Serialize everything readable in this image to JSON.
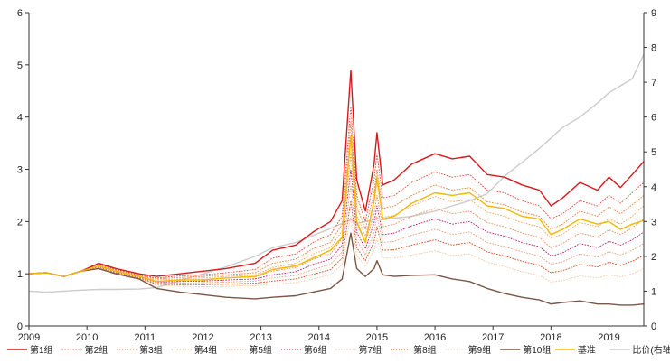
{
  "chart_data": {
    "type": "line",
    "title": "",
    "xlabel": "",
    "ylabel_left": "",
    "ylabel_right": "",
    "xlim": [
      2009,
      2019.6
    ],
    "ylim_left": [
      0,
      6
    ],
    "ylim_right": [
      0,
      9
    ],
    "x_ticks": [
      "2009",
      "2010",
      "2011",
      "2012",
      "2013",
      "2014",
      "2015",
      "2016",
      "2017",
      "2018",
      "2019"
    ],
    "y_ticks_left": [
      "0",
      "1",
      "2",
      "3",
      "4",
      "5",
      "6"
    ],
    "y_ticks_right": [
      "0",
      "1",
      "2",
      "3",
      "4",
      "5",
      "6",
      "7",
      "8",
      "9"
    ],
    "grid": false,
    "legend_position": "bottom",
    "series": [
      {
        "name": "第1组",
        "axis": "left",
        "color": "#d7191c",
        "dash": "solid",
        "width": 1.4,
        "x": [
          2009.0,
          2009.3,
          2009.6,
          2009.9,
          2010.2,
          2010.5,
          2010.9,
          2011.2,
          2011.6,
          2012.0,
          2012.4,
          2012.9,
          2013.2,
          2013.6,
          2013.9,
          2014.2,
          2014.4,
          2014.55,
          2014.65,
          2014.8,
          2014.95,
          2015.0,
          2015.1,
          2015.3,
          2015.6,
          2016.0,
          2016.3,
          2016.6,
          2016.9,
          2017.2,
          2017.5,
          2017.8,
          2018.0,
          2018.2,
          2018.5,
          2018.8,
          2019.0,
          2019.2,
          2019.4,
          2019.6
        ],
        "y": [
          1.0,
          1.02,
          0.95,
          1.05,
          1.2,
          1.1,
          1.0,
          0.95,
          1.0,
          1.05,
          1.1,
          1.2,
          1.45,
          1.55,
          1.8,
          2.0,
          2.4,
          4.9,
          2.8,
          2.2,
          3.1,
          3.7,
          2.7,
          2.8,
          3.1,
          3.3,
          3.2,
          3.25,
          2.9,
          2.85,
          2.7,
          2.6,
          2.3,
          2.45,
          2.75,
          2.6,
          2.85,
          2.65,
          2.9,
          3.15
        ]
      },
      {
        "name": "第2组",
        "axis": "left",
        "color": "#e34a33",
        "dash": "1 2",
        "width": 0.9,
        "x": [
          2009.0,
          2009.3,
          2009.6,
          2009.9,
          2010.2,
          2010.5,
          2010.9,
          2011.2,
          2011.6,
          2012.0,
          2012.4,
          2012.9,
          2013.2,
          2013.6,
          2013.9,
          2014.2,
          2014.4,
          2014.55,
          2014.65,
          2014.8,
          2014.95,
          2015.0,
          2015.1,
          2015.3,
          2015.6,
          2016.0,
          2016.3,
          2016.6,
          2016.9,
          2017.2,
          2017.5,
          2017.8,
          2018.0,
          2018.2,
          2018.5,
          2018.8,
          2019.0,
          2019.2,
          2019.4,
          2019.6
        ],
        "y": [
          1.0,
          1.02,
          0.95,
          1.05,
          1.18,
          1.08,
          0.98,
          0.92,
          0.96,
          0.98,
          1.02,
          1.08,
          1.3,
          1.38,
          1.6,
          1.75,
          2.1,
          4.2,
          2.5,
          2.0,
          2.8,
          3.3,
          2.45,
          2.5,
          2.75,
          2.95,
          2.85,
          2.9,
          2.6,
          2.55,
          2.4,
          2.3,
          2.05,
          2.15,
          2.4,
          2.3,
          2.5,
          2.35,
          2.55,
          2.75
        ]
      },
      {
        "name": "第3组",
        "axis": "left",
        "color": "#ee7d3a",
        "dash": "1 2",
        "width": 0.9,
        "x": [
          2009.0,
          2009.3,
          2009.6,
          2009.9,
          2010.2,
          2010.5,
          2010.9,
          2011.2,
          2011.6,
          2012.0,
          2012.4,
          2012.9,
          2013.2,
          2013.6,
          2013.9,
          2014.2,
          2014.4,
          2014.55,
          2014.65,
          2014.8,
          2014.95,
          2015.0,
          2015.1,
          2015.3,
          2015.6,
          2016.0,
          2016.3,
          2016.6,
          2016.9,
          2017.2,
          2017.5,
          2017.8,
          2018.0,
          2018.2,
          2018.5,
          2018.8,
          2019.0,
          2019.2,
          2019.4,
          2019.6
        ],
        "y": [
          1.0,
          1.02,
          0.95,
          1.05,
          1.17,
          1.07,
          0.97,
          0.9,
          0.93,
          0.95,
          0.98,
          1.02,
          1.2,
          1.28,
          1.48,
          1.6,
          1.95,
          3.9,
          2.3,
          1.85,
          2.55,
          3.0,
          2.25,
          2.3,
          2.5,
          2.7,
          2.6,
          2.65,
          2.38,
          2.32,
          2.18,
          2.1,
          1.85,
          1.95,
          2.2,
          2.1,
          2.28,
          2.15,
          2.32,
          2.5
        ]
      },
      {
        "name": "第4组",
        "axis": "left",
        "color": "#f4a460",
        "dash": "1 2",
        "width": 0.9,
        "x": [
          2009.0,
          2009.3,
          2009.6,
          2009.9,
          2010.2,
          2010.5,
          2010.9,
          2011.2,
          2011.6,
          2012.0,
          2012.4,
          2012.9,
          2013.2,
          2013.6,
          2013.9,
          2014.2,
          2014.4,
          2014.55,
          2014.65,
          2014.8,
          2014.95,
          2015.0,
          2015.1,
          2015.3,
          2015.6,
          2016.0,
          2016.3,
          2016.6,
          2016.9,
          2017.2,
          2017.5,
          2017.8,
          2018.0,
          2018.2,
          2018.5,
          2018.8,
          2019.0,
          2019.2,
          2019.4,
          2019.6
        ],
        "y": [
          1.0,
          1.02,
          0.95,
          1.05,
          1.16,
          1.06,
          0.96,
          0.88,
          0.9,
          0.92,
          0.95,
          0.98,
          1.12,
          1.2,
          1.38,
          1.5,
          1.82,
          3.6,
          2.12,
          1.72,
          2.35,
          2.75,
          2.08,
          2.12,
          2.3,
          2.48,
          2.38,
          2.42,
          2.18,
          2.1,
          1.98,
          1.9,
          1.68,
          1.76,
          1.98,
          1.9,
          2.05,
          1.95,
          2.1,
          2.3
        ]
      },
      {
        "name": "第5组",
        "axis": "left",
        "color": "#f08c5a",
        "dash": "1 2",
        "width": 0.9,
        "x": [
          2009.0,
          2009.3,
          2009.6,
          2009.9,
          2010.2,
          2010.5,
          2010.9,
          2011.2,
          2011.6,
          2012.0,
          2012.4,
          2012.9,
          2013.2,
          2013.6,
          2013.9,
          2014.2,
          2014.4,
          2014.55,
          2014.65,
          2014.8,
          2014.95,
          2015.0,
          2015.1,
          2015.3,
          2015.6,
          2016.0,
          2016.3,
          2016.6,
          2016.9,
          2017.2,
          2017.5,
          2017.8,
          2018.0,
          2018.2,
          2018.5,
          2018.8,
          2019.0,
          2019.2,
          2019.4,
          2019.6
        ],
        "y": [
          1.0,
          1.02,
          0.95,
          1.05,
          1.15,
          1.05,
          0.95,
          0.86,
          0.88,
          0.89,
          0.92,
          0.94,
          1.05,
          1.12,
          1.28,
          1.38,
          1.68,
          3.3,
          1.95,
          1.6,
          2.15,
          2.5,
          1.9,
          1.95,
          2.1,
          2.25,
          2.15,
          2.2,
          1.98,
          1.9,
          1.78,
          1.7,
          1.5,
          1.58,
          1.78,
          1.7,
          1.84,
          1.75,
          1.88,
          2.05
        ]
      },
      {
        "name": "第6组",
        "axis": "left",
        "color": "#c2185b",
        "dash": "1 2",
        "width": 0.9,
        "x": [
          2009.0,
          2009.3,
          2009.6,
          2009.9,
          2010.2,
          2010.5,
          2010.9,
          2011.2,
          2011.6,
          2012.0,
          2012.4,
          2012.9,
          2013.2,
          2013.6,
          2013.9,
          2014.2,
          2014.4,
          2014.55,
          2014.65,
          2014.8,
          2014.95,
          2015.0,
          2015.1,
          2015.3,
          2015.6,
          2016.0,
          2016.3,
          2016.6,
          2016.9,
          2017.2,
          2017.5,
          2017.8,
          2018.0,
          2018.2,
          2018.5,
          2018.8,
          2019.0,
          2019.2,
          2019.4,
          2019.6
        ],
        "y": [
          1.0,
          1.02,
          0.95,
          1.05,
          1.14,
          1.04,
          0.94,
          0.84,
          0.85,
          0.86,
          0.88,
          0.9,
          0.98,
          1.04,
          1.18,
          1.28,
          1.55,
          3.0,
          1.8,
          1.48,
          1.98,
          2.3,
          1.75,
          1.78,
          1.92,
          2.05,
          1.95,
          2.0,
          1.8,
          1.72,
          1.6,
          1.52,
          1.34,
          1.4,
          1.58,
          1.5,
          1.62,
          1.55,
          1.65,
          1.8
        ]
      },
      {
        "name": "第7组",
        "axis": "left",
        "color": "#e8a07a",
        "dash": "1 2",
        "width": 0.9,
        "x": [
          2009.0,
          2009.3,
          2009.6,
          2009.9,
          2010.2,
          2010.5,
          2010.9,
          2011.2,
          2011.6,
          2012.0,
          2012.4,
          2012.9,
          2013.2,
          2013.6,
          2013.9,
          2014.2,
          2014.4,
          2014.55,
          2014.65,
          2014.8,
          2014.95,
          2015.0,
          2015.1,
          2015.3,
          2015.6,
          2016.0,
          2016.3,
          2016.6,
          2016.9,
          2017.2,
          2017.5,
          2017.8,
          2018.0,
          2018.2,
          2018.5,
          2018.8,
          2019.0,
          2019.2,
          2019.4,
          2019.6
        ],
        "y": [
          1.0,
          1.02,
          0.95,
          1.05,
          1.13,
          1.03,
          0.93,
          0.82,
          0.82,
          0.83,
          0.84,
          0.86,
          0.92,
          0.97,
          1.08,
          1.18,
          1.42,
          2.7,
          1.65,
          1.36,
          1.8,
          2.1,
          1.6,
          1.62,
          1.74,
          1.85,
          1.75,
          1.8,
          1.6,
          1.52,
          1.42,
          1.34,
          1.18,
          1.23,
          1.38,
          1.32,
          1.42,
          1.36,
          1.45,
          1.58
        ]
      },
      {
        "name": "第8组",
        "axis": "left",
        "color": "#d84315",
        "dash": "1 2",
        "width": 0.9,
        "x": [
          2009.0,
          2009.3,
          2009.6,
          2009.9,
          2010.2,
          2010.5,
          2010.9,
          2011.2,
          2011.6,
          2012.0,
          2012.4,
          2012.9,
          2013.2,
          2013.6,
          2013.9,
          2014.2,
          2014.4,
          2014.55,
          2014.65,
          2014.8,
          2014.95,
          2015.0,
          2015.1,
          2015.3,
          2015.6,
          2016.0,
          2016.3,
          2016.6,
          2016.9,
          2017.2,
          2017.5,
          2017.8,
          2018.0,
          2018.2,
          2018.5,
          2018.8,
          2019.0,
          2019.2,
          2019.4,
          2019.6
        ],
        "y": [
          1.0,
          1.02,
          0.95,
          1.05,
          1.12,
          1.02,
          0.92,
          0.8,
          0.79,
          0.79,
          0.8,
          0.82,
          0.86,
          0.9,
          0.99,
          1.08,
          1.3,
          2.4,
          1.5,
          1.25,
          1.62,
          1.9,
          1.45,
          1.46,
          1.55,
          1.65,
          1.55,
          1.6,
          1.42,
          1.34,
          1.24,
          1.16,
          1.02,
          1.06,
          1.18,
          1.13,
          1.22,
          1.16,
          1.24,
          1.35
        ]
      },
      {
        "name": "第9组",
        "axis": "left",
        "color": "#f6c89f",
        "dash": "1 2",
        "width": 0.9,
        "x": [
          2009.0,
          2009.3,
          2009.6,
          2009.9,
          2010.2,
          2010.5,
          2010.9,
          2011.2,
          2011.6,
          2012.0,
          2012.4,
          2012.9,
          2013.2,
          2013.6,
          2013.9,
          2014.2,
          2014.4,
          2014.55,
          2014.65,
          2014.8,
          2014.95,
          2015.0,
          2015.1,
          2015.3,
          2015.6,
          2016.0,
          2016.3,
          2016.6,
          2016.9,
          2017.2,
          2017.5,
          2017.8,
          2018.0,
          2018.2,
          2018.5,
          2018.8,
          2019.0,
          2019.2,
          2019.4,
          2019.6
        ],
        "y": [
          1.0,
          1.02,
          0.95,
          1.05,
          1.11,
          1.01,
          0.91,
          0.78,
          0.76,
          0.75,
          0.76,
          0.77,
          0.8,
          0.83,
          0.9,
          0.98,
          1.18,
          2.1,
          1.35,
          1.14,
          1.45,
          1.68,
          1.3,
          1.3,
          1.36,
          1.44,
          1.35,
          1.38,
          1.22,
          1.14,
          1.04,
          0.97,
          0.84,
          0.87,
          0.96,
          0.92,
          0.98,
          0.94,
          1.0,
          1.1
        ]
      },
      {
        "name": "第10组",
        "axis": "left",
        "color": "#7b5545",
        "dash": "solid",
        "width": 1.4,
        "x": [
          2009.0,
          2009.3,
          2009.6,
          2009.9,
          2010.2,
          2010.5,
          2010.9,
          2011.2,
          2011.6,
          2012.0,
          2012.4,
          2012.9,
          2013.2,
          2013.6,
          2013.9,
          2014.2,
          2014.4,
          2014.55,
          2014.65,
          2014.8,
          2014.95,
          2015.0,
          2015.1,
          2015.3,
          2015.6,
          2016.0,
          2016.3,
          2016.6,
          2016.9,
          2017.2,
          2017.5,
          2017.8,
          2018.0,
          2018.2,
          2018.5,
          2018.8,
          2019.0,
          2019.2,
          2019.4,
          2019.6
        ],
        "y": [
          1.0,
          1.02,
          0.95,
          1.05,
          1.1,
          1.0,
          0.9,
          0.72,
          0.65,
          0.6,
          0.55,
          0.52,
          0.55,
          0.58,
          0.65,
          0.72,
          0.9,
          1.78,
          1.1,
          0.95,
          1.1,
          1.25,
          0.98,
          0.95,
          0.97,
          0.98,
          0.9,
          0.85,
          0.72,
          0.62,
          0.55,
          0.5,
          0.42,
          0.45,
          0.48,
          0.42,
          0.42,
          0.4,
          0.4,
          0.42
        ]
      },
      {
        "name": "基准",
        "axis": "left",
        "color": "#f5b800",
        "dash": "solid",
        "width": 1.4,
        "x": [
          2009.0,
          2009.3,
          2009.6,
          2009.9,
          2010.2,
          2010.5,
          2010.9,
          2011.2,
          2011.6,
          2012.0,
          2012.4,
          2012.9,
          2013.2,
          2013.6,
          2013.9,
          2014.2,
          2014.4,
          2014.55,
          2014.65,
          2014.8,
          2014.95,
          2015.0,
          2015.1,
          2015.3,
          2015.6,
          2016.0,
          2016.3,
          2016.6,
          2016.9,
          2017.2,
          2017.5,
          2017.8,
          2018.0,
          2018.2,
          2018.5,
          2018.8,
          2019.0,
          2019.2,
          2019.4,
          2019.6
        ],
        "y": [
          1.0,
          1.02,
          0.95,
          1.05,
          1.15,
          1.05,
          0.95,
          0.85,
          0.88,
          0.88,
          0.92,
          0.95,
          1.08,
          1.15,
          1.3,
          1.45,
          1.7,
          3.65,
          2.0,
          1.6,
          2.4,
          2.85,
          2.05,
          2.1,
          2.35,
          2.55,
          2.5,
          2.55,
          2.3,
          2.25,
          2.1,
          2.05,
          1.75,
          1.85,
          2.05,
          1.95,
          2.0,
          1.85,
          1.95,
          2.02
        ]
      },
      {
        "name": "比价(右轴)",
        "axis": "right",
        "color": "#cccccc",
        "dash": "solid",
        "width": 1.4,
        "x": [
          2009.0,
          2009.3,
          2009.6,
          2009.9,
          2010.2,
          2010.5,
          2010.9,
          2011.2,
          2011.6,
          2012.0,
          2012.4,
          2012.9,
          2013.2,
          2013.6,
          2013.9,
          2014.2,
          2014.4,
          2014.55,
          2014.65,
          2014.8,
          2014.95,
          2015.0,
          2015.1,
          2015.3,
          2015.6,
          2016.0,
          2016.3,
          2016.6,
          2016.9,
          2017.2,
          2017.5,
          2017.8,
          2018.0,
          2018.2,
          2018.5,
          2018.8,
          2019.0,
          2019.2,
          2019.4,
          2019.6
        ],
        "y": [
          1.0,
          0.97,
          1.0,
          1.03,
          1.05,
          1.05,
          1.06,
          1.1,
          1.3,
          1.5,
          1.7,
          2.0,
          2.25,
          2.4,
          2.6,
          2.8,
          2.95,
          3.05,
          2.95,
          3.0,
          3.05,
          3.1,
          3.05,
          3.1,
          3.15,
          3.3,
          3.45,
          3.6,
          3.8,
          4.3,
          4.7,
          5.1,
          5.4,
          5.7,
          6.0,
          6.4,
          6.7,
          6.9,
          7.1,
          7.8
        ]
      }
    ]
  }
}
